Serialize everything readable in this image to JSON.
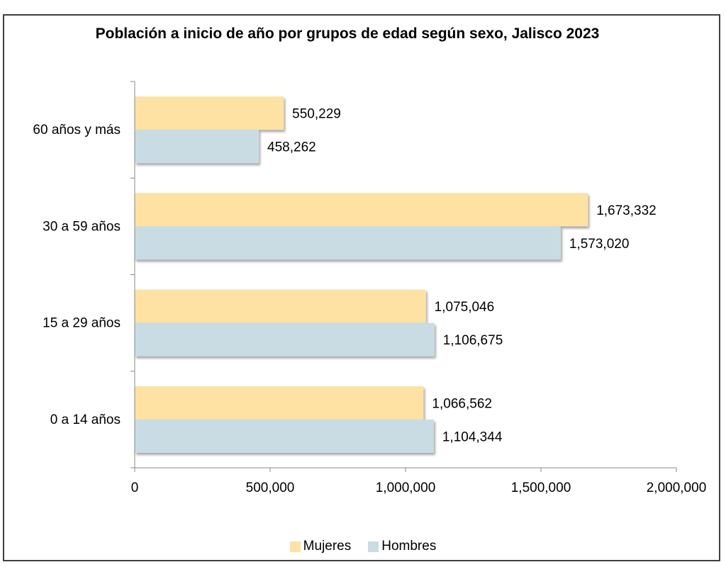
{
  "chart_data": {
    "type": "bar",
    "orientation": "horizontal",
    "title": "Población a inicio de año por grupos de edad según sexo, Jalisco 2023",
    "categories": [
      "60 años y más",
      "30 a 59 años",
      "15 a 29 años",
      "0 a 14 años"
    ],
    "series": [
      {
        "name": "Mujeres",
        "color": "#fde2a4",
        "values": [
          550229,
          1673332,
          1075046,
          1066562
        ],
        "labels": [
          "550,229",
          "1,673,332",
          "1,075,046",
          "1,066,562"
        ]
      },
      {
        "name": "Hombres",
        "color": "#c9dce3",
        "values": [
          458262,
          1573020,
          1106675,
          1104344
        ],
        "labels": [
          "458,262",
          "1,573,020",
          "1,106,675",
          "1,104,344"
        ]
      }
    ],
    "xlim": [
      0,
      2000000
    ],
    "xticks": [
      0,
      500000,
      1000000,
      1500000,
      2000000
    ],
    "xtick_labels": [
      "0",
      "500,000",
      "1,000,000",
      "1,500,000",
      "2,000,000"
    ],
    "grid": false,
    "legend_position": "bottom"
  }
}
